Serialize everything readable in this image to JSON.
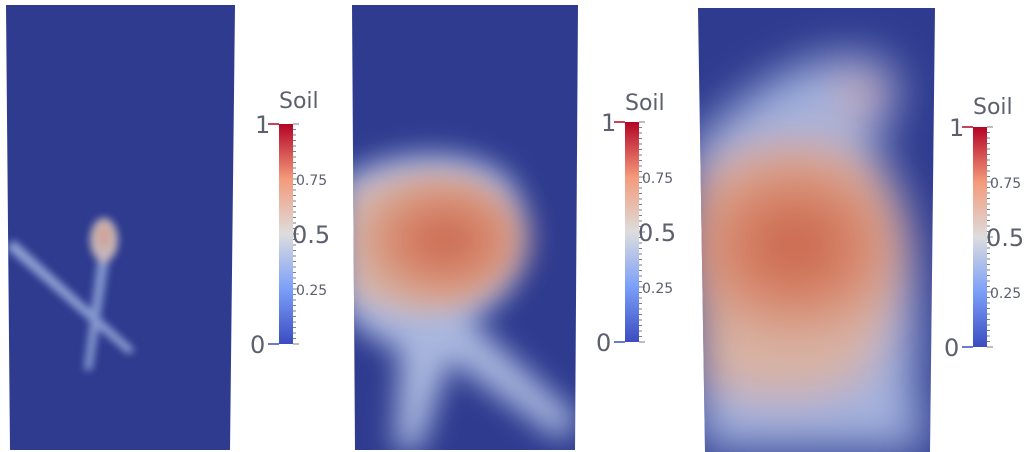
{
  "legend_bars": [
    {
      "title": "Soil",
      "label_max": "1",
      "label_mid": "0.5",
      "label_min": "0",
      "label_q3": "0.75",
      "label_q1": "0.25"
    },
    {
      "title": "Soil",
      "label_max": "1",
      "label_mid": "0.5",
      "label_min": "0",
      "label_q3": "0.75",
      "label_q1": "0.25"
    },
    {
      "title": "Soil",
      "label_max": "1",
      "label_mid": "0.5",
      "label_min": "0",
      "label_q3": "0.75",
      "label_q1": "0.25"
    }
  ],
  "colormap": {
    "low": "#3b4cc0",
    "mid": "#dddddd",
    "high": "#b40426",
    "background": "#2e3b8f"
  }
}
